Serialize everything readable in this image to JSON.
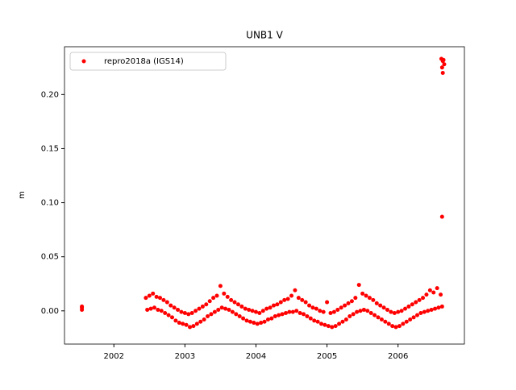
{
  "chart_data": {
    "type": "scatter",
    "title": "UNB1 V",
    "y_label": "m",
    "x": [
      2001.55,
      2001.55,
      2001.55,
      2002.45,
      2002.47,
      2002.5,
      2002.52,
      2002.55,
      2002.57,
      2002.6,
      2002.62,
      2002.65,
      2002.67,
      2002.7,
      2002.72,
      2002.75,
      2002.77,
      2002.8,
      2002.82,
      2002.85,
      2002.87,
      2002.9,
      2002.92,
      2002.95,
      2002.97,
      2003.0,
      2003.02,
      2003.05,
      2003.07,
      2003.1,
      2003.12,
      2003.15,
      2003.17,
      2003.2,
      2003.22,
      2003.25,
      2003.27,
      2003.3,
      2003.32,
      2003.35,
      2003.37,
      2003.4,
      2003.42,
      2003.45,
      2003.47,
      2003.5,
      2003.52,
      2003.55,
      2003.57,
      2003.6,
      2003.62,
      2003.65,
      2003.67,
      2003.7,
      2003.72,
      2003.75,
      2003.77,
      2003.8,
      2003.82,
      2003.85,
      2003.87,
      2003.9,
      2003.92,
      2003.95,
      2003.97,
      2004.0,
      2004.02,
      2004.05,
      2004.07,
      2004.1,
      2004.12,
      2004.15,
      2004.17,
      2004.2,
      2004.22,
      2004.25,
      2004.27,
      2004.3,
      2004.32,
      2004.35,
      2004.37,
      2004.4,
      2004.42,
      2004.45,
      2004.47,
      2004.5,
      2004.52,
      2004.55,
      2004.57,
      2004.6,
      2004.62,
      2004.65,
      2004.67,
      2004.7,
      2004.72,
      2004.75,
      2004.77,
      2004.8,
      2004.82,
      2004.85,
      2004.87,
      2004.9,
      2004.92,
      2004.95,
      2004.97,
      2005.0,
      2005.02,
      2005.05,
      2005.07,
      2005.1,
      2005.12,
      2005.15,
      2005.17,
      2005.2,
      2005.22,
      2005.25,
      2005.27,
      2005.3,
      2005.32,
      2005.35,
      2005.37,
      2005.4,
      2005.42,
      2005.45,
      2005.47,
      2005.5,
      2005.52,
      2005.55,
      2005.57,
      2005.6,
      2005.62,
      2005.65,
      2005.67,
      2005.7,
      2005.72,
      2005.75,
      2005.77,
      2005.8,
      2005.82,
      2005.85,
      2005.87,
      2005.9,
      2005.92,
      2005.95,
      2005.97,
      2006.0,
      2006.02,
      2006.05,
      2006.07,
      2006.1,
      2006.12,
      2006.15,
      2006.17,
      2006.2,
      2006.22,
      2006.25,
      2006.27,
      2006.3,
      2006.32,
      2006.35,
      2006.37,
      2006.4,
      2006.42,
      2006.45,
      2006.47,
      2006.5,
      2006.52,
      2006.55,
      2006.57,
      2006.6,
      2006.62,
      2006.62,
      2006.61,
      2006.62,
      2006.63,
      2006.64,
      2006.65,
      2006.63
    ],
    "series": [
      {
        "name": "repro2018a (IGS14)",
        "color": "#ff0000",
        "values": [
          0.003,
          0.001,
          0.004,
          0.012,
          0.001,
          0.014,
          0.002,
          0.016,
          0.003,
          0.013,
          0.001,
          0.012,
          0.0,
          0.01,
          -0.002,
          0.008,
          -0.004,
          0.005,
          -0.006,
          0.003,
          -0.009,
          0.001,
          -0.011,
          -0.001,
          -0.012,
          -0.002,
          -0.013,
          -0.003,
          -0.015,
          -0.002,
          -0.014,
          0.0,
          -0.012,
          0.002,
          -0.01,
          0.004,
          -0.008,
          0.006,
          -0.005,
          0.009,
          -0.003,
          0.012,
          -0.001,
          0.014,
          0.001,
          0.023,
          0.003,
          0.016,
          0.002,
          0.013,
          0.001,
          0.01,
          -0.001,
          0.008,
          -0.003,
          0.006,
          -0.005,
          0.004,
          -0.007,
          0.002,
          -0.009,
          0.001,
          -0.01,
          0.0,
          -0.011,
          -0.001,
          -0.012,
          -0.002,
          -0.011,
          0.0,
          -0.01,
          0.002,
          -0.008,
          0.003,
          -0.007,
          0.005,
          -0.005,
          0.006,
          -0.004,
          0.008,
          -0.003,
          0.01,
          -0.002,
          0.011,
          -0.001,
          0.014,
          -0.001,
          0.019,
          0.0,
          0.012,
          -0.002,
          0.01,
          -0.003,
          0.008,
          -0.005,
          0.005,
          -0.007,
          0.003,
          -0.009,
          0.002,
          -0.01,
          0.0,
          -0.012,
          -0.001,
          -0.013,
          0.008,
          -0.014,
          -0.002,
          -0.015,
          -0.001,
          -0.014,
          0.001,
          -0.012,
          0.003,
          -0.01,
          0.005,
          -0.008,
          0.007,
          -0.005,
          0.009,
          -0.003,
          0.012,
          -0.001,
          0.024,
          0.0,
          0.016,
          0.001,
          0.014,
          0.0,
          0.012,
          -0.002,
          0.01,
          -0.004,
          0.007,
          -0.006,
          0.005,
          -0.008,
          0.003,
          -0.01,
          0.001,
          -0.012,
          -0.001,
          -0.014,
          -0.002,
          -0.015,
          -0.001,
          -0.014,
          0.0,
          -0.012,
          0.002,
          -0.01,
          0.004,
          -0.008,
          0.006,
          -0.006,
          0.008,
          -0.004,
          0.01,
          -0.002,
          0.012,
          -0.001,
          0.015,
          0.0,
          0.019,
          0.001,
          0.017,
          0.002,
          0.021,
          0.003,
          0.015,
          0.004,
          0.087,
          0.233,
          0.225,
          0.22,
          0.232,
          0.228,
          0.231
        ]
      }
    ],
    "xlim": [
      2001.305,
      2006.934
    ],
    "ylim": [
      -0.0307,
      0.2442
    ],
    "xticks": [
      2002,
      2003,
      2004,
      2005,
      2006
    ],
    "yticks": [
      {
        "value": 0,
        "label": "0.00"
      },
      {
        "value": 0.05,
        "label": "0.05"
      },
      {
        "value": 0.1,
        "label": "0.10"
      },
      {
        "value": 0.15,
        "label": "0.15"
      },
      {
        "value": 0.2,
        "label": "0.20"
      }
    ],
    "legend": "upper left",
    "grid": false
  }
}
